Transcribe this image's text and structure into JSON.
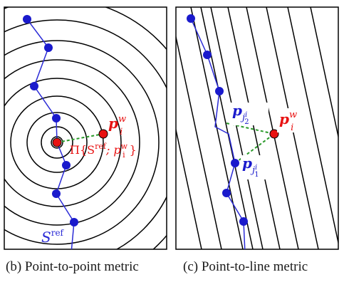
{
  "panels": [
    {
      "caption": "(b) Point-to-point metric",
      "labels": {
        "point": "p",
        "point_sup": "w",
        "point_sub": "i",
        "projection": "Π{S",
        "projection_sup": "ref",
        "projection_mid": "; p",
        "projection_end": "}",
        "curve": "S",
        "curve_sup": "ref"
      }
    },
    {
      "caption": "(c) Point-to-line metric",
      "labels": {
        "point": "p",
        "point_sup": "w",
        "point_sub": "i",
        "upper": "p",
        "upper_sub": "j",
        "upper_subsup": "i",
        "upper_subsub": "2",
        "lower": "p",
        "lower_sub": "j",
        "lower_subsup": "i",
        "lower_subsub": "1"
      }
    }
  ],
  "colors": {
    "polyline": "#2b2bd6",
    "node": "#1a1acc",
    "query": "#e81212",
    "link": "#2a9a2a",
    "frame": "#000000"
  }
}
